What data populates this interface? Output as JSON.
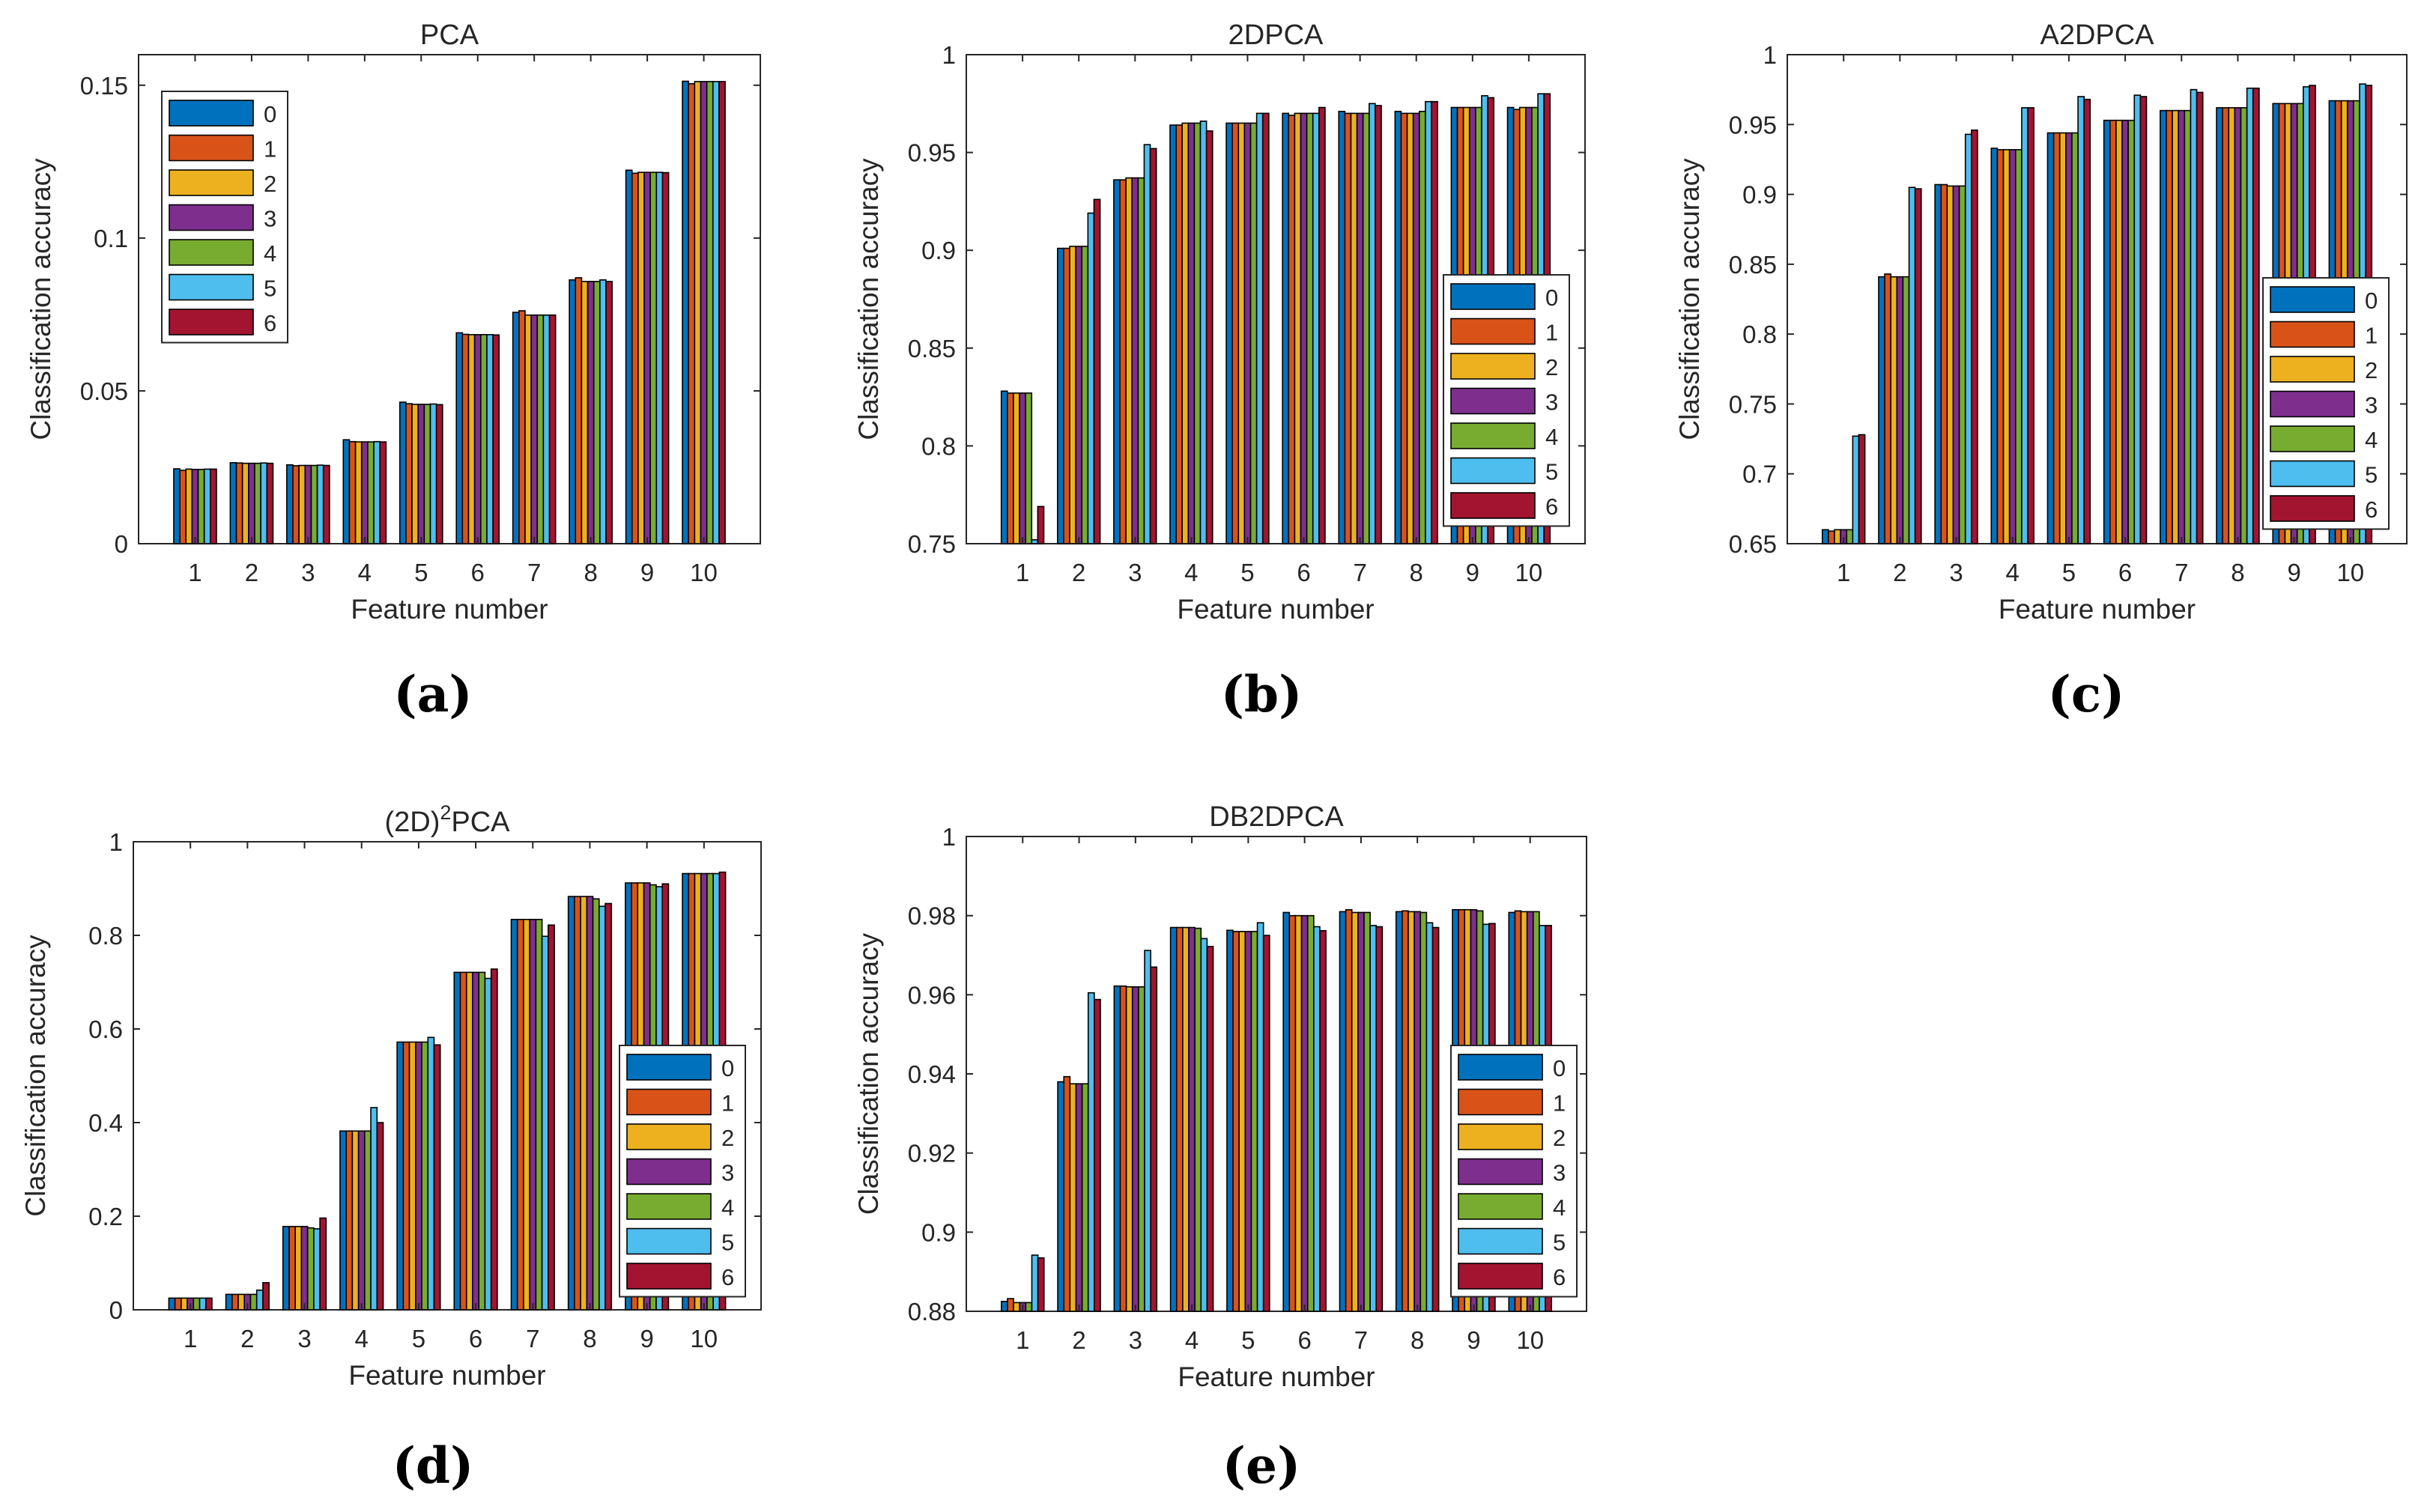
{
  "figure": {
    "series_colors": [
      "#0072BD",
      "#D95319",
      "#EDB120",
      "#7E2F8E",
      "#77AC30",
      "#4DBEEE",
      "#A2142F"
    ]
  },
  "chart_data": [
    {
      "type": "bar",
      "panel_label": "(a)",
      "title": "PCA",
      "xlabel": "Feature number",
      "ylabel": "Classification accuracy",
      "categories": [
        "1",
        "2",
        "3",
        "4",
        "5",
        "6",
        "7",
        "8",
        "9",
        "10"
      ],
      "ylim": [
        0,
        0.16
      ],
      "yticks": [
        0,
        0.05,
        0.1,
        0.15
      ],
      "ytick_labels": [
        "0",
        "0.05",
        "0.1",
        "0.15"
      ],
      "legend_position": "top-left",
      "series": [
        {
          "name": "0",
          "values": [
            0.0245,
            0.0265,
            0.0258,
            0.034,
            0.0463,
            0.069,
            0.0757,
            0.0863,
            0.1222,
            0.1513
          ]
        },
        {
          "name": "1",
          "values": [
            0.024,
            0.0264,
            0.0255,
            0.0334,
            0.0458,
            0.0685,
            0.0762,
            0.087,
            0.1212,
            0.1505
          ]
        },
        {
          "name": "2",
          "values": [
            0.0244,
            0.0263,
            0.0256,
            0.0333,
            0.0456,
            0.0684,
            0.0748,
            0.0858,
            0.1215,
            0.1512
          ]
        },
        {
          "name": "3",
          "values": [
            0.0243,
            0.0263,
            0.0256,
            0.0333,
            0.0456,
            0.0684,
            0.0748,
            0.0858,
            0.1215,
            0.1512
          ]
        },
        {
          "name": "4",
          "values": [
            0.0243,
            0.0263,
            0.0256,
            0.0333,
            0.0456,
            0.0684,
            0.0748,
            0.0858,
            0.1215,
            0.1512
          ]
        },
        {
          "name": "5",
          "values": [
            0.0244,
            0.0264,
            0.0257,
            0.0334,
            0.0457,
            0.0684,
            0.0748,
            0.0863,
            0.1215,
            0.1512
          ]
        },
        {
          "name": "6",
          "values": [
            0.0244,
            0.0263,
            0.0256,
            0.0333,
            0.0455,
            0.0683,
            0.0748,
            0.0858,
            0.1214,
            0.1512
          ]
        }
      ]
    },
    {
      "type": "bar",
      "panel_label": "(b)",
      "title": "2DPCA",
      "xlabel": "Feature number",
      "ylabel": "Classification accuracy",
      "categories": [
        "1",
        "2",
        "3",
        "4",
        "5",
        "6",
        "7",
        "8",
        "9",
        "10"
      ],
      "ylim": [
        0.75,
        1
      ],
      "yticks": [
        0.75,
        0.8,
        0.85,
        0.9,
        0.95,
        1
      ],
      "ytick_labels": [
        "0.75",
        "0.8",
        "0.85",
        "0.9",
        "0.95",
        "1"
      ],
      "legend_position": "bottom-right",
      "series": [
        {
          "name": "0",
          "values": [
            0.828,
            0.901,
            0.936,
            0.964,
            0.965,
            0.97,
            0.971,
            0.971,
            0.973,
            0.973
          ]
        },
        {
          "name": "1",
          "values": [
            0.827,
            0.901,
            0.936,
            0.964,
            0.965,
            0.969,
            0.97,
            0.97,
            0.973,
            0.972
          ]
        },
        {
          "name": "2",
          "values": [
            0.827,
            0.902,
            0.937,
            0.965,
            0.965,
            0.97,
            0.97,
            0.97,
            0.973,
            0.973
          ]
        },
        {
          "name": "3",
          "values": [
            0.827,
            0.902,
            0.937,
            0.965,
            0.965,
            0.97,
            0.97,
            0.97,
            0.973,
            0.973
          ]
        },
        {
          "name": "4",
          "values": [
            0.827,
            0.902,
            0.937,
            0.965,
            0.965,
            0.97,
            0.97,
            0.971,
            0.973,
            0.973
          ]
        },
        {
          "name": "5",
          "values": [
            0.752,
            0.919,
            0.954,
            0.966,
            0.97,
            0.97,
            0.975,
            0.976,
            0.979,
            0.98
          ]
        },
        {
          "name": "6",
          "values": [
            0.769,
            0.926,
            0.952,
            0.961,
            0.97,
            0.973,
            0.974,
            0.976,
            0.978,
            0.98
          ]
        }
      ]
    },
    {
      "type": "bar",
      "panel_label": "(c)",
      "title": "A2DPCA",
      "xlabel": "Feature number",
      "ylabel": "Classification accuracy",
      "categories": [
        "1",
        "2",
        "3",
        "4",
        "5",
        "6",
        "7",
        "8",
        "9",
        "10"
      ],
      "ylim": [
        0.65,
        1
      ],
      "yticks": [
        0.65,
        0.7,
        0.75,
        0.8,
        0.85,
        0.9,
        0.95,
        1
      ],
      "ytick_labels": [
        "0.65",
        "0.7",
        "0.75",
        "0.8",
        "0.85",
        "0.9",
        "0.95",
        "1"
      ],
      "legend_position": "bottom-right",
      "series": [
        {
          "name": "0",
          "values": [
            0.66,
            0.841,
            0.907,
            0.933,
            0.944,
            0.953,
            0.96,
            0.962,
            0.965,
            0.967
          ]
        },
        {
          "name": "1",
          "values": [
            0.659,
            0.843,
            0.907,
            0.932,
            0.944,
            0.953,
            0.96,
            0.962,
            0.965,
            0.967
          ]
        },
        {
          "name": "2",
          "values": [
            0.66,
            0.841,
            0.906,
            0.932,
            0.944,
            0.953,
            0.96,
            0.962,
            0.965,
            0.967
          ]
        },
        {
          "name": "3",
          "values": [
            0.66,
            0.841,
            0.906,
            0.932,
            0.944,
            0.953,
            0.96,
            0.962,
            0.965,
            0.967
          ]
        },
        {
          "name": "4",
          "values": [
            0.66,
            0.841,
            0.906,
            0.932,
            0.944,
            0.953,
            0.96,
            0.962,
            0.965,
            0.967
          ]
        },
        {
          "name": "5",
          "values": [
            0.727,
            0.905,
            0.943,
            0.962,
            0.97,
            0.971,
            0.975,
            0.976,
            0.977,
            0.979
          ]
        },
        {
          "name": "6",
          "values": [
            0.728,
            0.904,
            0.946,
            0.962,
            0.968,
            0.97,
            0.973,
            0.976,
            0.978,
            0.978
          ]
        }
      ]
    },
    {
      "type": "bar",
      "panel_label": "(d)",
      "title": "(2D)",
      "title_superscript": "2",
      "title_suffix": "PCA",
      "xlabel": "Feature number",
      "ylabel": "Classification accuracy",
      "categories": [
        "1",
        "2",
        "3",
        "4",
        "5",
        "6",
        "7",
        "8",
        "9",
        "10"
      ],
      "ylim": [
        0,
        1
      ],
      "yticks": [
        0,
        0.2,
        0.4,
        0.6,
        0.8,
        1
      ],
      "ytick_labels": [
        "0",
        "0.2",
        "0.4",
        "0.6",
        "0.8",
        "1"
      ],
      "legend_position": "bottom-right",
      "series": [
        {
          "name": "0",
          "values": [
            0.025,
            0.033,
            0.178,
            0.382,
            0.572,
            0.721,
            0.834,
            0.883,
            0.912,
            0.932
          ]
        },
        {
          "name": "1",
          "values": [
            0.025,
            0.033,
            0.178,
            0.382,
            0.572,
            0.721,
            0.834,
            0.883,
            0.912,
            0.932
          ]
        },
        {
          "name": "2",
          "values": [
            0.025,
            0.033,
            0.178,
            0.382,
            0.572,
            0.721,
            0.834,
            0.883,
            0.912,
            0.932
          ]
        },
        {
          "name": "3",
          "values": [
            0.025,
            0.033,
            0.178,
            0.382,
            0.572,
            0.721,
            0.834,
            0.883,
            0.912,
            0.932
          ]
        },
        {
          "name": "4",
          "values": [
            0.025,
            0.033,
            0.175,
            0.382,
            0.572,
            0.721,
            0.834,
            0.878,
            0.908,
            0.932
          ]
        },
        {
          "name": "5",
          "values": [
            0.025,
            0.042,
            0.173,
            0.432,
            0.582,
            0.708,
            0.798,
            0.862,
            0.904,
            0.932
          ]
        },
        {
          "name": "6",
          "values": [
            0.025,
            0.058,
            0.196,
            0.4,
            0.566,
            0.728,
            0.822,
            0.868,
            0.91,
            0.935
          ]
        }
      ]
    },
    {
      "type": "bar",
      "panel_label": "(e)",
      "title": "DB2DPCA",
      "xlabel": "Feature number",
      "ylabel": "Classification accuracy",
      "categories": [
        "1",
        "2",
        "3",
        "4",
        "5",
        "6",
        "7",
        "8",
        "9",
        "10"
      ],
      "ylim": [
        0.88,
        1
      ],
      "yticks": [
        0.88,
        0.9,
        0.92,
        0.94,
        0.96,
        0.98,
        1
      ],
      "ytick_labels": [
        "0.88",
        "0.9",
        "0.92",
        "0.94",
        "0.96",
        "0.98",
        "1"
      ],
      "legend_position": "bottom-right",
      "series": [
        {
          "name": "0",
          "values": [
            0.8825,
            0.938,
            0.9622,
            0.977,
            0.9763,
            0.9808,
            0.981,
            0.981,
            0.9815,
            0.9808
          ]
        },
        {
          "name": "1",
          "values": [
            0.8832,
            0.9393,
            0.9622,
            0.977,
            0.976,
            0.98,
            0.9815,
            0.9812,
            0.9815,
            0.9812
          ]
        },
        {
          "name": "2",
          "values": [
            0.8822,
            0.9375,
            0.962,
            0.977,
            0.976,
            0.98,
            0.9808,
            0.981,
            0.9815,
            0.981
          ]
        },
        {
          "name": "3",
          "values": [
            0.8822,
            0.9375,
            0.962,
            0.977,
            0.976,
            0.98,
            0.9808,
            0.981,
            0.9815,
            0.981
          ]
        },
        {
          "name": "4",
          "values": [
            0.8822,
            0.9375,
            0.962,
            0.9768,
            0.976,
            0.98,
            0.9808,
            0.9808,
            0.9812,
            0.981
          ]
        },
        {
          "name": "5",
          "values": [
            0.8942,
            0.9605,
            0.9712,
            0.9742,
            0.9782,
            0.9772,
            0.9775,
            0.9782,
            0.9778,
            0.9775
          ]
        },
        {
          "name": "6",
          "values": [
            0.8935,
            0.9588,
            0.967,
            0.9722,
            0.975,
            0.9762,
            0.9772,
            0.977,
            0.978,
            0.9775
          ]
        }
      ]
    }
  ]
}
